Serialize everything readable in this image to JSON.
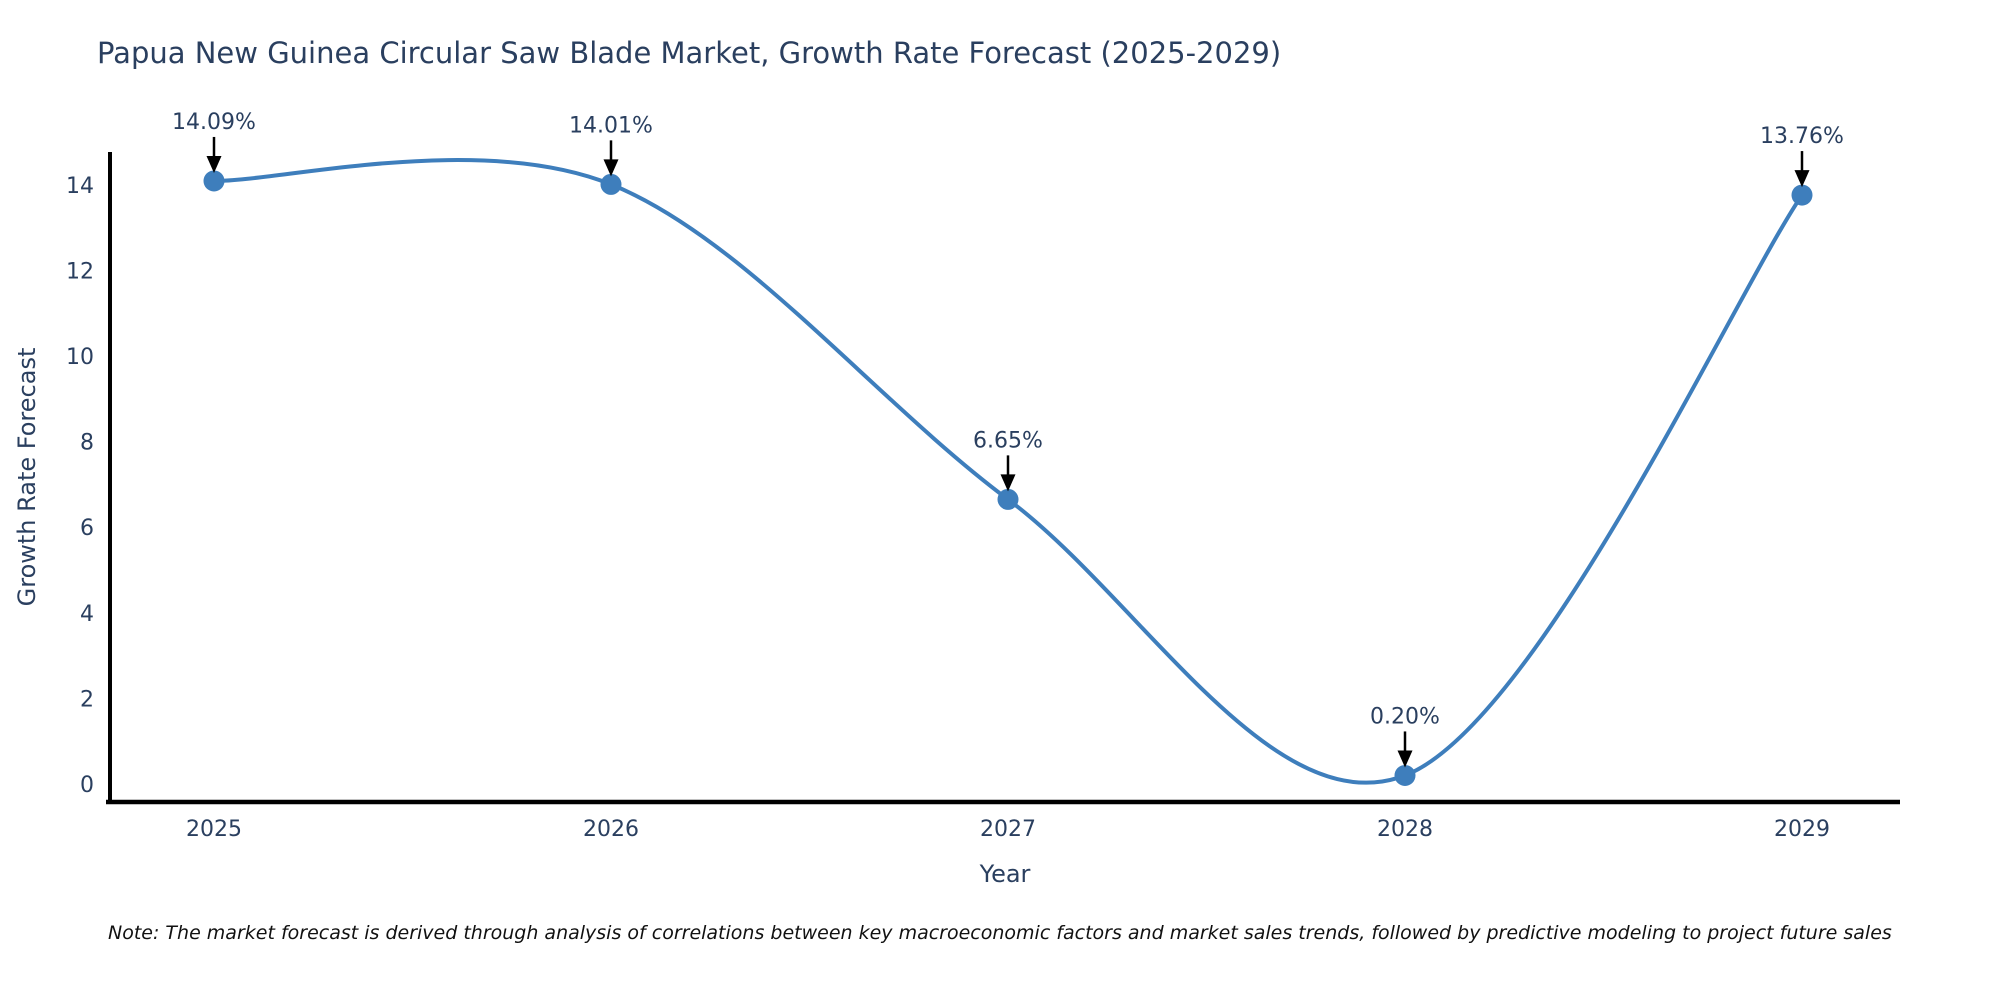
{
  "figure": {
    "title": "Papua New Guinea Circular Saw Blade Market, Growth Rate Forecast (2025-2029)",
    "note": "Note: The market forecast is derived through analysis of correlations between key macroeconomic factors and market sales trends, followed by predictive modeling to project future sales"
  },
  "chart_data": {
    "type": "line",
    "title": "Papua New Guinea Circular Saw Blade Market, Growth Rate Forecast (2025-2029)",
    "xlabel": "Year",
    "ylabel": "Growth Rate Forecast",
    "categories": [
      "2025",
      "2026",
      "2027",
      "2028",
      "2029"
    ],
    "values": [
      14.09,
      14.01,
      6.65,
      0.2,
      13.76
    ],
    "annotations": [
      "14.09%",
      "14.01%",
      "6.65%",
      "0.20%",
      "13.76%"
    ],
    "yticks": [
      "0",
      "2",
      "4",
      "6",
      "8",
      "10",
      "12",
      "14"
    ],
    "ylim": [
      -0.4,
      14.8
    ],
    "line_shape": "spline",
    "grid": false,
    "legend": "none",
    "colors": {
      "line": "#3E7EBC",
      "marker": "#3E7EBC",
      "axis": "#000000",
      "tick_text": "#2a3f5f",
      "annotation_text": "#2a3f5f",
      "annotation_arrow": "#000000",
      "note_text": "#111111",
      "background": "#ffffff"
    }
  }
}
